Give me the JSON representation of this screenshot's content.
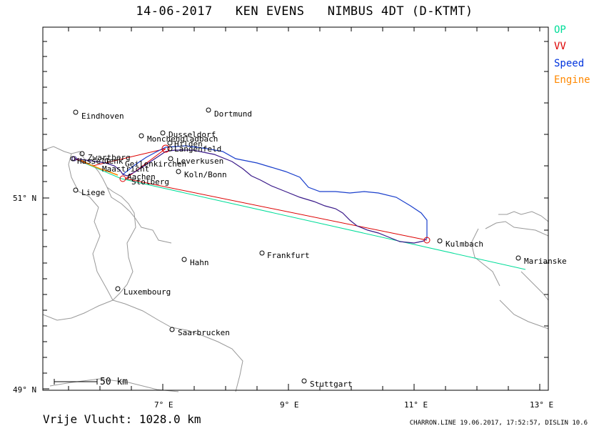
{
  "title": "14-06-2017   KEN EVENS   NIMBUS 4DT (D-KTMT)",
  "legend": [
    {
      "label": "OP",
      "color": "#00dd99"
    },
    {
      "label": "VV",
      "color": "#dd0000"
    },
    {
      "label": "Speed",
      "color": "#0033dd"
    },
    {
      "label": "Engine",
      "color": "#ff8800"
    }
  ],
  "axes": {
    "lat_labels": [
      "51° N",
      "49° N"
    ],
    "lon_labels": [
      "7° E",
      "9° E",
      "11° E",
      "13° E"
    ]
  },
  "scale_bar": {
    "label": "50  km"
  },
  "cities": [
    {
      "name": "Eindhoven"
    },
    {
      "name": "Dortmund"
    },
    {
      "name": "Dusseldorf"
    },
    {
      "name": "Monchengladbach"
    },
    {
      "name": "Hilden"
    },
    {
      "name": "Langenfeld"
    },
    {
      "name": "Zwartberg"
    },
    {
      "name": "Leverkusen"
    },
    {
      "name": "Hasselt"
    },
    {
      "name": "Genk"
    },
    {
      "name": "Geilenkirchen"
    },
    {
      "name": "Maastricht"
    },
    {
      "name": "Koln/Bonn"
    },
    {
      "name": "Aachen"
    },
    {
      "name": "Stolberg"
    },
    {
      "name": "Liege"
    },
    {
      "name": "Kulmbach"
    },
    {
      "name": "Frankfurt"
    },
    {
      "name": "Hahn"
    },
    {
      "name": "Marianske"
    },
    {
      "name": "Luxembourg"
    },
    {
      "name": "Saarbrucken"
    },
    {
      "name": "Stuttgart"
    }
  ],
  "footer": {
    "distance": "Vrije Vlucht: 1028.0 km",
    "credit": "CHARRON.LINE 19.06.2017, 17:52:57, DISLIN 10.6"
  },
  "colors": {
    "border": "#999999",
    "frame": "#000000",
    "op_line": "#00dd99",
    "vv_line": "#dd0000",
    "track_blue": "#1a3fcc",
    "track_purple": "#3a1a8a"
  }
}
